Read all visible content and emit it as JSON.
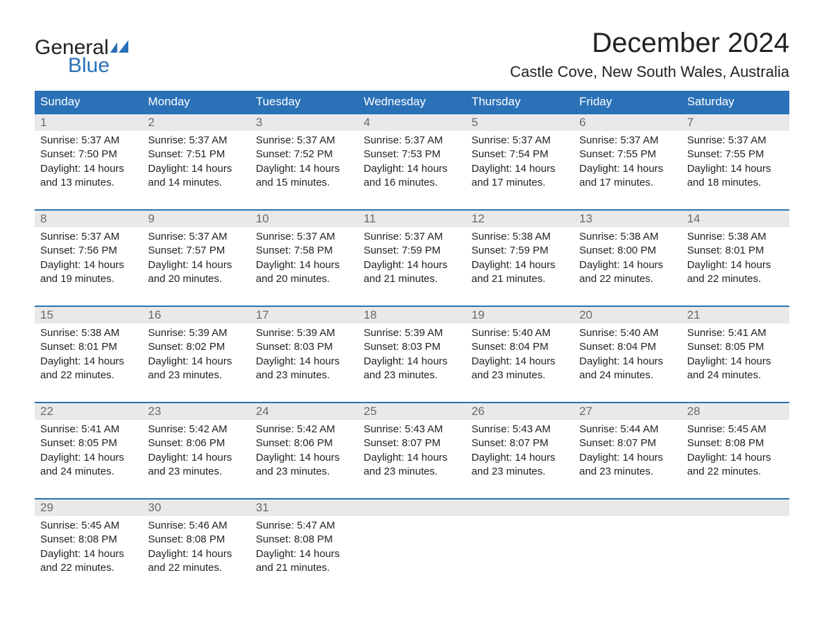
{
  "logo": {
    "top": "General",
    "bottom": "Blue",
    "flag_color": "#2a71b8"
  },
  "title": "December 2024",
  "location": "Castle Cove, New South Wales, Australia",
  "colors": {
    "header_bg": "#2a71b8",
    "header_text": "#ffffff",
    "daynum_bg": "#e9e9e9",
    "daynum_text": "#6a6a6a",
    "body_text": "#222222",
    "week_border": "#2a71b8",
    "page_bg": "#ffffff"
  },
  "typography": {
    "title_fontsize": 40,
    "location_fontsize": 22,
    "dayheader_fontsize": 17,
    "daynum_fontsize": 17,
    "cell_fontsize": 15
  },
  "day_names": [
    "Sunday",
    "Monday",
    "Tuesday",
    "Wednesday",
    "Thursday",
    "Friday",
    "Saturday"
  ],
  "labels": {
    "sunrise": "Sunrise:",
    "sunset": "Sunset:",
    "daylight": "Daylight:"
  },
  "weeks": [
    [
      {
        "n": "1",
        "sr": "5:37 AM",
        "ss": "7:50 PM",
        "dl1": "14 hours",
        "dl2": "and 13 minutes."
      },
      {
        "n": "2",
        "sr": "5:37 AM",
        "ss": "7:51 PM",
        "dl1": "14 hours",
        "dl2": "and 14 minutes."
      },
      {
        "n": "3",
        "sr": "5:37 AM",
        "ss": "7:52 PM",
        "dl1": "14 hours",
        "dl2": "and 15 minutes."
      },
      {
        "n": "4",
        "sr": "5:37 AM",
        "ss": "7:53 PM",
        "dl1": "14 hours",
        "dl2": "and 16 minutes."
      },
      {
        "n": "5",
        "sr": "5:37 AM",
        "ss": "7:54 PM",
        "dl1": "14 hours",
        "dl2": "and 17 minutes."
      },
      {
        "n": "6",
        "sr": "5:37 AM",
        "ss": "7:55 PM",
        "dl1": "14 hours",
        "dl2": "and 17 minutes."
      },
      {
        "n": "7",
        "sr": "5:37 AM",
        "ss": "7:55 PM",
        "dl1": "14 hours",
        "dl2": "and 18 minutes."
      }
    ],
    [
      {
        "n": "8",
        "sr": "5:37 AM",
        "ss": "7:56 PM",
        "dl1": "14 hours",
        "dl2": "and 19 minutes."
      },
      {
        "n": "9",
        "sr": "5:37 AM",
        "ss": "7:57 PM",
        "dl1": "14 hours",
        "dl2": "and 20 minutes."
      },
      {
        "n": "10",
        "sr": "5:37 AM",
        "ss": "7:58 PM",
        "dl1": "14 hours",
        "dl2": "and 20 minutes."
      },
      {
        "n": "11",
        "sr": "5:37 AM",
        "ss": "7:59 PM",
        "dl1": "14 hours",
        "dl2": "and 21 minutes."
      },
      {
        "n": "12",
        "sr": "5:38 AM",
        "ss": "7:59 PM",
        "dl1": "14 hours",
        "dl2": "and 21 minutes."
      },
      {
        "n": "13",
        "sr": "5:38 AM",
        "ss": "8:00 PM",
        "dl1": "14 hours",
        "dl2": "and 22 minutes."
      },
      {
        "n": "14",
        "sr": "5:38 AM",
        "ss": "8:01 PM",
        "dl1": "14 hours",
        "dl2": "and 22 minutes."
      }
    ],
    [
      {
        "n": "15",
        "sr": "5:38 AM",
        "ss": "8:01 PM",
        "dl1": "14 hours",
        "dl2": "and 22 minutes."
      },
      {
        "n": "16",
        "sr": "5:39 AM",
        "ss": "8:02 PM",
        "dl1": "14 hours",
        "dl2": "and 23 minutes."
      },
      {
        "n": "17",
        "sr": "5:39 AM",
        "ss": "8:03 PM",
        "dl1": "14 hours",
        "dl2": "and 23 minutes."
      },
      {
        "n": "18",
        "sr": "5:39 AM",
        "ss": "8:03 PM",
        "dl1": "14 hours",
        "dl2": "and 23 minutes."
      },
      {
        "n": "19",
        "sr": "5:40 AM",
        "ss": "8:04 PM",
        "dl1": "14 hours",
        "dl2": "and 23 minutes."
      },
      {
        "n": "20",
        "sr": "5:40 AM",
        "ss": "8:04 PM",
        "dl1": "14 hours",
        "dl2": "and 24 minutes."
      },
      {
        "n": "21",
        "sr": "5:41 AM",
        "ss": "8:05 PM",
        "dl1": "14 hours",
        "dl2": "and 24 minutes."
      }
    ],
    [
      {
        "n": "22",
        "sr": "5:41 AM",
        "ss": "8:05 PM",
        "dl1": "14 hours",
        "dl2": "and 24 minutes."
      },
      {
        "n": "23",
        "sr": "5:42 AM",
        "ss": "8:06 PM",
        "dl1": "14 hours",
        "dl2": "and 23 minutes."
      },
      {
        "n": "24",
        "sr": "5:42 AM",
        "ss": "8:06 PM",
        "dl1": "14 hours",
        "dl2": "and 23 minutes."
      },
      {
        "n": "25",
        "sr": "5:43 AM",
        "ss": "8:07 PM",
        "dl1": "14 hours",
        "dl2": "and 23 minutes."
      },
      {
        "n": "26",
        "sr": "5:43 AM",
        "ss": "8:07 PM",
        "dl1": "14 hours",
        "dl2": "and 23 minutes."
      },
      {
        "n": "27",
        "sr": "5:44 AM",
        "ss": "8:07 PM",
        "dl1": "14 hours",
        "dl2": "and 23 minutes."
      },
      {
        "n": "28",
        "sr": "5:45 AM",
        "ss": "8:08 PM",
        "dl1": "14 hours",
        "dl2": "and 22 minutes."
      }
    ],
    [
      {
        "n": "29",
        "sr": "5:45 AM",
        "ss": "8:08 PM",
        "dl1": "14 hours",
        "dl2": "and 22 minutes."
      },
      {
        "n": "30",
        "sr": "5:46 AM",
        "ss": "8:08 PM",
        "dl1": "14 hours",
        "dl2": "and 22 minutes."
      },
      {
        "n": "31",
        "sr": "5:47 AM",
        "ss": "8:08 PM",
        "dl1": "14 hours",
        "dl2": "and 21 minutes."
      },
      null,
      null,
      null,
      null
    ]
  ]
}
